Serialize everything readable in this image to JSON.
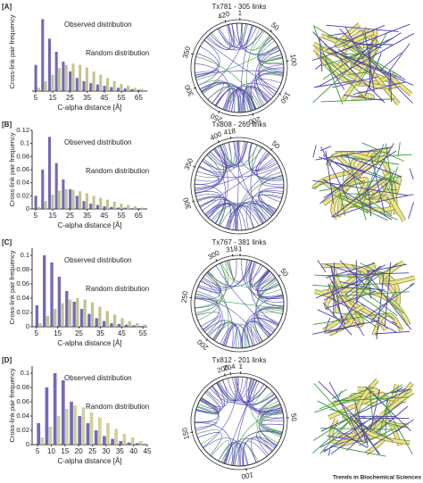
{
  "chart_data": [
    {
      "type": "bar",
      "label": "[A]",
      "xlabel": "C-alpha distance [Å]",
      "ylabel": "Cross-link pair frequency",
      "xlim": [
        3,
        70
      ],
      "xticks": [
        5,
        15,
        25,
        35,
        45,
        55,
        65
      ],
      "ylim": [
        0,
        0.12
      ],
      "x": [
        6,
        10,
        14,
        18,
        22,
        26,
        30,
        34,
        38,
        42,
        46,
        50,
        54,
        58,
        62,
        66
      ],
      "series": [
        {
          "name": "Observed distribution",
          "color": "#5a4fb0",
          "values": [
            0.04,
            0.11,
            0.08,
            0.06,
            0.045,
            0.03,
            0.02,
            0.015,
            0.012,
            0.01,
            0.008,
            0.006,
            0.005,
            0.004,
            0.003,
            0.002
          ]
        },
        {
          "name": "Random distribution",
          "color": "#b9b97c",
          "values": [
            0.005,
            0.015,
            0.025,
            0.035,
            0.04,
            0.042,
            0.04,
            0.036,
            0.03,
            0.025,
            0.02,
            0.015,
            0.011,
            0.008,
            0.005,
            0.003
          ]
        }
      ],
      "circos": {
        "title": "Tx781 - 305 links",
        "lim": [
          0,
          440
        ],
        "ticks": [
          1,
          50,
          100,
          150,
          200,
          250,
          300,
          350,
          420
        ]
      }
    },
    {
      "type": "bar",
      "label": "[B]",
      "xlabel": "C-alpha distance [Å]",
      "ylabel": "Cross-link pair frequency",
      "xlim": [
        3,
        70
      ],
      "xticks": [
        5,
        15,
        25,
        35,
        45,
        55,
        65
      ],
      "ylim": [
        0,
        0.12
      ],
      "yticks": [
        0,
        0.02,
        0.04,
        0.06,
        0.08,
        0.1,
        0.12
      ],
      "x": [
        6,
        10,
        14,
        18,
        22,
        26,
        30,
        34,
        38,
        42,
        46,
        50,
        54,
        58,
        62,
        66
      ],
      "series": [
        {
          "name": "Observed distribution",
          "color": "#5a4fb0",
          "values": [
            0.02,
            0.06,
            0.11,
            0.07,
            0.045,
            0.03,
            0.02,
            0.012,
            0.008,
            0.006,
            0.004,
            0.003,
            0.002,
            0.002,
            0.001,
            0.001
          ]
        },
        {
          "name": "Random distribution",
          "color": "#b9b97c",
          "values": [
            0.003,
            0.012,
            0.022,
            0.028,
            0.03,
            0.029,
            0.027,
            0.024,
            0.02,
            0.017,
            0.014,
            0.011,
            0.008,
            0.006,
            0.004,
            0.002
          ]
        }
      ],
      "circos": {
        "title": "Tx808 - 265 links",
        "lim": [
          0,
          430
        ],
        "ticks": [
          50,
          300,
          350,
          400,
          418
        ]
      }
    },
    {
      "type": "bar",
      "label": "[C]",
      "xlabel": "C-alpha distance [Å]",
      "ylabel": "Cross-link pair frequency",
      "xlim": [
        3,
        57
      ],
      "xticks": [
        5,
        15,
        25,
        35,
        45,
        55
      ],
      "ylim": [
        0,
        0.11
      ],
      "yticks": [
        0,
        0.02,
        0.04,
        0.06,
        0.08,
        0.1
      ],
      "x": [
        6,
        9.5,
        13,
        16.5,
        20,
        23.5,
        27,
        30.5,
        34,
        37.5,
        41,
        44.5,
        48,
        51.5,
        55
      ],
      "series": [
        {
          "name": "Observed distribution",
          "color": "#5a4fb0",
          "values": [
            0.03,
            0.1,
            0.09,
            0.07,
            0.05,
            0.035,
            0.025,
            0.018,
            0.012,
            0.008,
            0.005,
            0.004,
            0.003,
            0.002,
            0.001
          ]
        },
        {
          "name": "Random distribution",
          "color": "#b9b97c",
          "values": [
            0.005,
            0.015,
            0.025,
            0.033,
            0.038,
            0.04,
            0.038,
            0.034,
            0.028,
            0.022,
            0.017,
            0.012,
            0.008,
            0.005,
            0.003
          ]
        }
      ],
      "circos": {
        "title": "Tx767 - 381 links",
        "lim": [
          0,
          325
        ],
        "ticks": [
          1,
          50,
          200,
          250,
          300,
          318
        ]
      }
    },
    {
      "type": "bar",
      "label": "[D]",
      "xlabel": "C-alpha distance [Å]",
      "ylabel": "Cross-link pair frequency",
      "xlim": [
        3,
        45
      ],
      "xticks": [
        5,
        10,
        15,
        20,
        25,
        30,
        35,
        40,
        45
      ],
      "ylim": [
        0,
        0.11
      ],
      "yticks": [
        0,
        0.02,
        0.04,
        0.06,
        0.08,
        0.1
      ],
      "x": [
        6,
        9,
        12,
        15,
        18,
        21,
        24,
        27,
        30,
        33,
        36,
        39,
        42
      ],
      "series": [
        {
          "name": "Observed distribution",
          "color": "#5a4fb0",
          "values": [
            0.03,
            0.08,
            0.1,
            0.09,
            0.06,
            0.04,
            0.03,
            0.02,
            0.012,
            0.008,
            0.005,
            0.003,
            0.002
          ]
        },
        {
          "name": "Random distribution",
          "color": "#c8c888",
          "values": [
            0.01,
            0.025,
            0.04,
            0.05,
            0.055,
            0.052,
            0.045,
            0.038,
            0.03,
            0.022,
            0.015,
            0.01,
            0.005
          ]
        }
      ],
      "circos": {
        "title": "Tx812 - 201 links",
        "lim": [
          0,
          210
        ],
        "ticks": [
          1,
          50,
          100,
          150,
          200,
          204
        ]
      }
    }
  ],
  "footer": "Trends in Biochemical Sciences"
}
